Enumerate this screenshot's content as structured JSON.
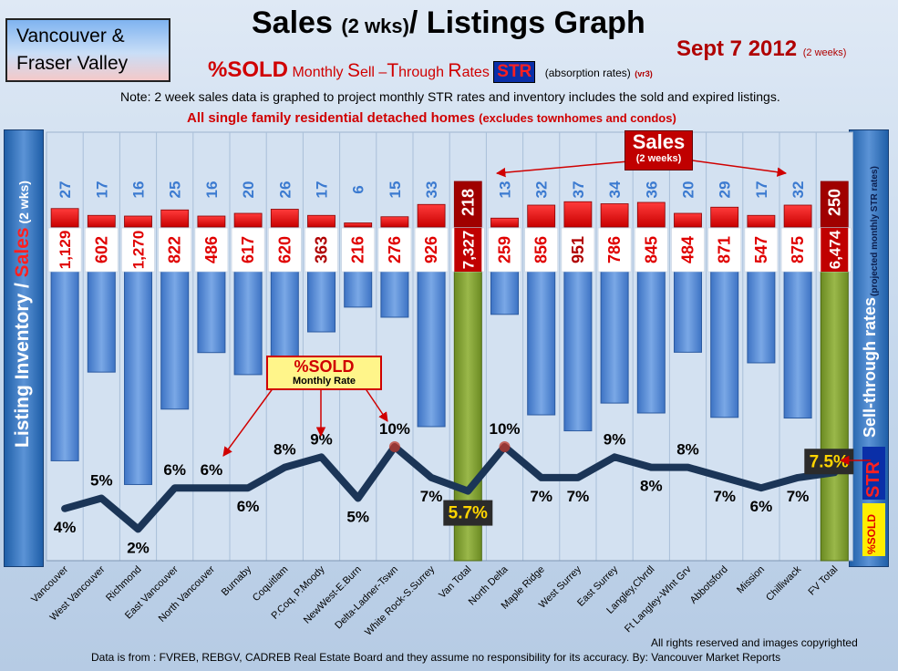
{
  "header": {
    "region_line1": "Vancouver &",
    "region_line2": "Fraser Valley",
    "title_a": "Sales ",
    "title_b": "(2 wks)",
    "title_c": "/ Listings Graph",
    "date": "Sept 7 2012",
    "date_note": "(2 weeks)",
    "sold_label": "%SOLD",
    "str_m1": "Monthly ",
    "str_m2": "S",
    "str_m3": "ell –",
    "str_m4": "T",
    "str_m5": "hrough ",
    "str_m6": "R",
    "str_m7": "ates",
    "str_badge": "STR",
    "absorption": "(absorption rates)",
    "version": "(vr3)",
    "note": "Note: 2 week sales data is graphed to project monthly STR rates and inventory includes the sold and expired listings.",
    "subtitle_main": "All single family residential detached homes ",
    "subtitle_paren": "(excludes townhomes and condos)"
  },
  "left_panel": {
    "inventory": "Listing Inventory ",
    "slash": "/ ",
    "sales": "Sales",
    "wks": " (2  wks)"
  },
  "right_panel": {
    "str_rates": "Sell-through rates",
    "projected": "(projected monthly STR rates)",
    "str_badge": "STR",
    "sold_badge": "%SOLD"
  },
  "callouts": {
    "sales_title": "Sales",
    "sales_sub": "(2 weeks)",
    "sold_title": "%SOLD",
    "sold_sub": "Monthly Rate"
  },
  "colors": {
    "sales_bar": "#e00000",
    "total_sales_bar": "#a00000",
    "inventory_bar": "#4f86d3",
    "total_inventory_bar": "#7d9a30",
    "str_line": "#1b3557",
    "str_peak_marker": "#c0392b"
  },
  "chart_data": {
    "type": "bar",
    "categories": [
      "Vancouver",
      "West Vancouver",
      "Richmond",
      "East Vancouver",
      "North Vancouver",
      "Burnaby",
      "Coquitlam",
      "P.Coq, P.Moody",
      "NewWest-E.Burn",
      "Delta-Ladner-Tswn",
      "White Rock-S.Surrey",
      "Van Total",
      "North Delta",
      "Maple Ridge",
      "West Surrey",
      "East Surrey",
      "Langley,Clvrdl",
      "Ft Langley-Wlnt Grv",
      "Abbotsford",
      "Mission",
      "Chilliwack",
      "FV Total"
    ],
    "series": [
      {
        "name": "Sales",
        "values": [
          27,
          17,
          16,
          25,
          16,
          20,
          26,
          17,
          6,
          15,
          33,
          218,
          13,
          32,
          37,
          34,
          36,
          20,
          29,
          17,
          32,
          250
        ],
        "labels": [
          "27",
          "17",
          "16",
          "25",
          "16",
          "20",
          "26",
          "17",
          "6",
          "15",
          "33",
          "218",
          "13",
          "32",
          "37",
          "34",
          "36",
          "20",
          "29",
          "17",
          "32",
          "250"
        ]
      },
      {
        "name": "Listing Inventory",
        "values": [
          1129,
          602,
          1270,
          822,
          486,
          617,
          620,
          363,
          216,
          276,
          926,
          7327,
          259,
          856,
          951,
          786,
          845,
          484,
          871,
          547,
          875,
          6474
        ],
        "labels": [
          "1,129",
          "602",
          "1,270",
          "822",
          "486",
          "617",
          "620",
          "363",
          "216",
          "276",
          "926",
          "7,327",
          "259",
          "856",
          "951",
          "786",
          "845",
          "484",
          "871",
          "547",
          "875",
          "6,474"
        ]
      },
      {
        "name": "%SOLD",
        "values": [
          4,
          5,
          2,
          6,
          6,
          6,
          8,
          9,
          5,
          10,
          7,
          5.7,
          10,
          7,
          7,
          9,
          8,
          8,
          7,
          6,
          7,
          7.5
        ],
        "labels": [
          "4%",
          "5%",
          "2%",
          "6%",
          "6%",
          "6%",
          "8%",
          "9%",
          "5%",
          "10%",
          "7%",
          "5.7%",
          "10%",
          "7%",
          "7%",
          "9%",
          "8%",
          "8%",
          "7%",
          "6%",
          "7%",
          "7.5%"
        ]
      }
    ],
    "total_categories": [
      "Van Total",
      "FV Total"
    ]
  },
  "footer": {
    "rights": "All rights reserved and  images copyrighted",
    "source": "Data is from : FVREB, REBGV, CADREB Real Estate Board and they assume no responsibility for its accuracy. By: Vancouver Market Reports"
  }
}
